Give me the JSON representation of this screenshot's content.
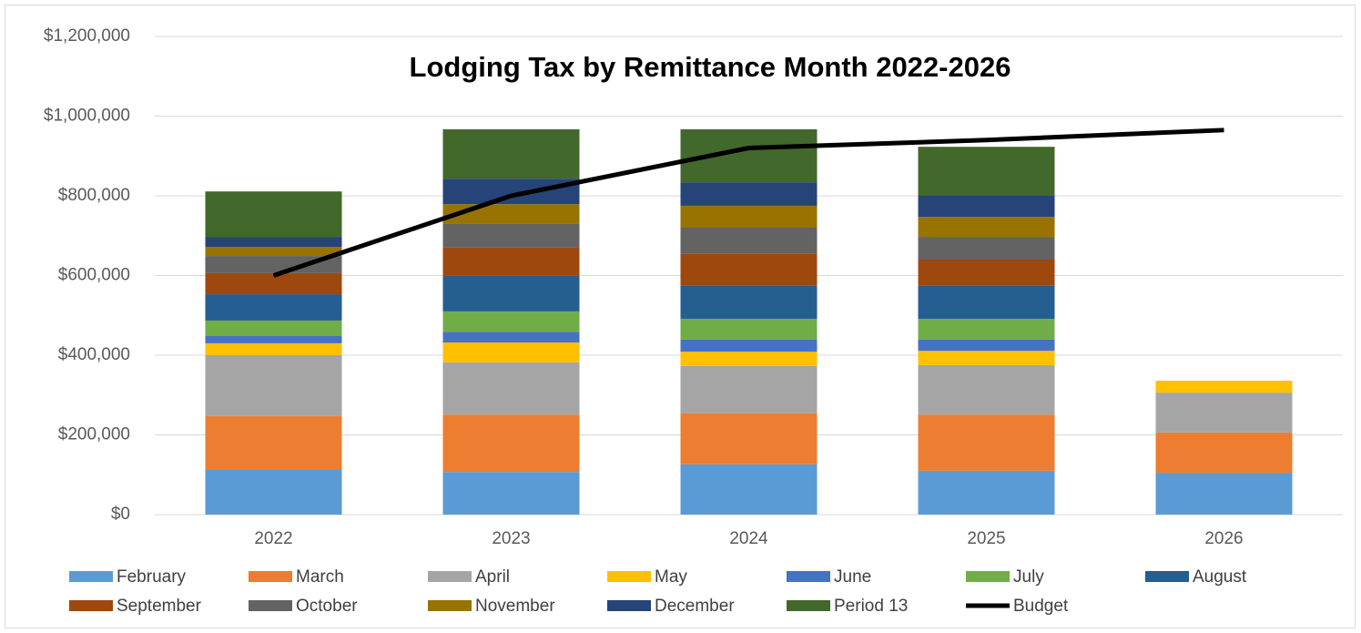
{
  "chart_data": {
    "type": "bar",
    "stacked": true,
    "title": "Lodging Tax by Remittance Month 2022-2026",
    "categories": [
      "2022",
      "2023",
      "2024",
      "2025",
      "2026"
    ],
    "series": [
      {
        "name": "February",
        "color": "#5b9bd5",
        "values": [
          112000,
          107000,
          126000,
          110000,
          105000
        ]
      },
      {
        "name": "March",
        "color": "#ed7d31",
        "values": [
          135000,
          144000,
          128000,
          141000,
          101000
        ]
      },
      {
        "name": "April",
        "color": "#a5a5a5",
        "values": [
          153000,
          131000,
          119000,
          124000,
          100000
        ]
      },
      {
        "name": "May",
        "color": "#ffc000",
        "values": [
          30000,
          50000,
          36000,
          36000,
          30000
        ]
      },
      {
        "name": "June",
        "color": "#4472c4",
        "values": [
          18000,
          27000,
          30000,
          28000,
          null
        ]
      },
      {
        "name": "July",
        "color": "#70ad47",
        "values": [
          39000,
          51000,
          52000,
          52000,
          null
        ]
      },
      {
        "name": "August",
        "color": "#255e91",
        "values": [
          66000,
          89000,
          83000,
          83000,
          null
        ]
      },
      {
        "name": "September",
        "color": "#9e480e",
        "values": [
          53000,
          71000,
          80000,
          66000,
          null
        ]
      },
      {
        "name": "October",
        "color": "#636363",
        "values": [
          43000,
          61000,
          66000,
          57000,
          null
        ]
      },
      {
        "name": "November",
        "color": "#997300",
        "values": [
          23000,
          48000,
          55000,
          50000,
          null
        ]
      },
      {
        "name": "December",
        "color": "#264478",
        "values": [
          25000,
          64000,
          59000,
          53000,
          null
        ]
      },
      {
        "name": "Period 13",
        "color": "#43682b",
        "values": [
          114000,
          124000,
          133000,
          123000,
          null
        ]
      },
      {
        "name": "Budget",
        "color": "#000000",
        "type": "line",
        "values": [
          600000,
          800000,
          920000,
          940000,
          965000
        ]
      }
    ],
    "ylim": [
      0,
      1200000
    ],
    "yticks": [
      {
        "value": 0,
        "label": "$0"
      },
      {
        "value": 200000,
        "label": "$200,000"
      },
      {
        "value": 400000,
        "label": "$400,000"
      },
      {
        "value": 600000,
        "label": "$600,000"
      },
      {
        "value": 800000,
        "label": "$800,000"
      },
      {
        "value": 1000000,
        "label": "$1,000,000"
      },
      {
        "value": 1200000,
        "label": "$1,200,000"
      }
    ],
    "grid": true,
    "legend": "bottom"
  }
}
